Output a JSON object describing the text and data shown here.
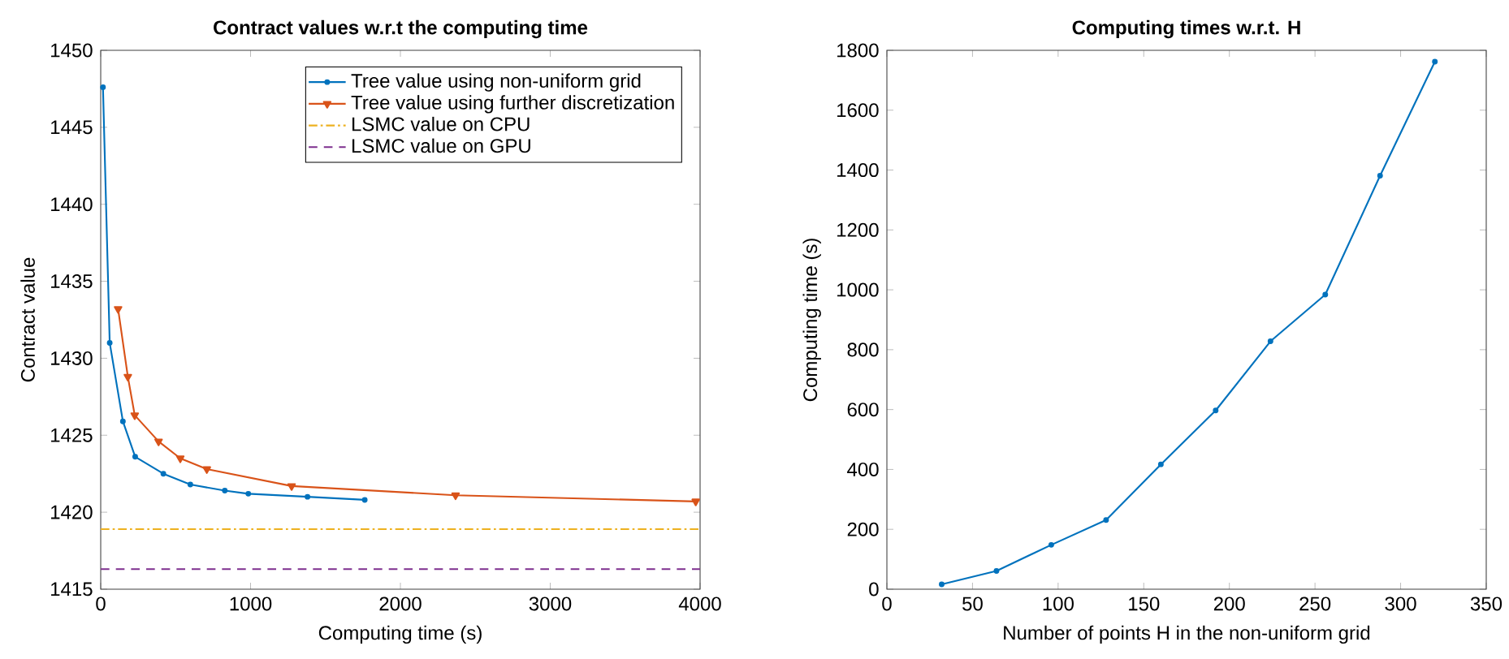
{
  "chart_data": [
    {
      "type": "line",
      "title": "Contract values w.r.t the computing time",
      "xlabel": "Computing time (s)",
      "ylabel": "Contract value",
      "xlim": [
        0,
        4000
      ],
      "xticks": [
        0,
        1000,
        2000,
        3000,
        4000
      ],
      "ylim": [
        1415,
        1450
      ],
      "yticks": [
        1415,
        1420,
        1425,
        1430,
        1435,
        1440,
        1445,
        1450
      ],
      "legend": "top right",
      "grid": false,
      "series": [
        {
          "name": "Tree value using non-uniform grid",
          "color": "#0072bd",
          "marker": "circle",
          "x": [
            15,
            60,
            148,
            230,
            418,
            598,
            828,
            985,
            1380,
            1762
          ],
          "values": [
            1447.6,
            1431.0,
            1425.9,
            1423.6,
            1422.5,
            1421.8,
            1421.4,
            1421.2,
            1421.0,
            1420.8
          ]
        },
        {
          "name": "Tree value using further discretization",
          "color": "#d95319",
          "marker": "triangle",
          "x": [
            116,
            181,
            227,
            386,
            531,
            708,
            1274,
            2368,
            3971
          ],
          "values": [
            1433.2,
            1428.8,
            1426.3,
            1424.6,
            1423.5,
            1422.8,
            1421.7,
            1421.1,
            1420.7
          ]
        }
      ],
      "ref_lines": [
        {
          "axis": "y",
          "value": 1418.9,
          "label": "LSMC value on CPU",
          "color": "#edb120",
          "line_style": "dashdot"
        },
        {
          "axis": "y",
          "value": 1416.3,
          "label": "LSMC value on GPU",
          "color": "#7e2f8e",
          "line_style": "dashed"
        }
      ]
    },
    {
      "type": "line",
      "title": "Computing times w.r.t. H",
      "xlabel": "Number of points H in the non-uniform grid",
      "ylabel": "Computing time (s)",
      "xlim": [
        0,
        350
      ],
      "xticks": [
        0,
        50,
        100,
        150,
        200,
        250,
        300,
        350
      ],
      "ylim": [
        0,
        1800
      ],
      "yticks": [
        0,
        200,
        400,
        600,
        800,
        1000,
        1200,
        1400,
        1600,
        1800
      ],
      "grid": false,
      "marker": "circle",
      "series": [
        {
          "color": "#0072bd",
          "x": [
            32,
            64,
            96,
            128,
            160,
            192,
            224,
            256,
            288,
            320
          ],
          "values": [
            16,
            61,
            148,
            231,
            417,
            597,
            828,
            984,
            1381,
            1762
          ]
        }
      ]
    }
  ]
}
